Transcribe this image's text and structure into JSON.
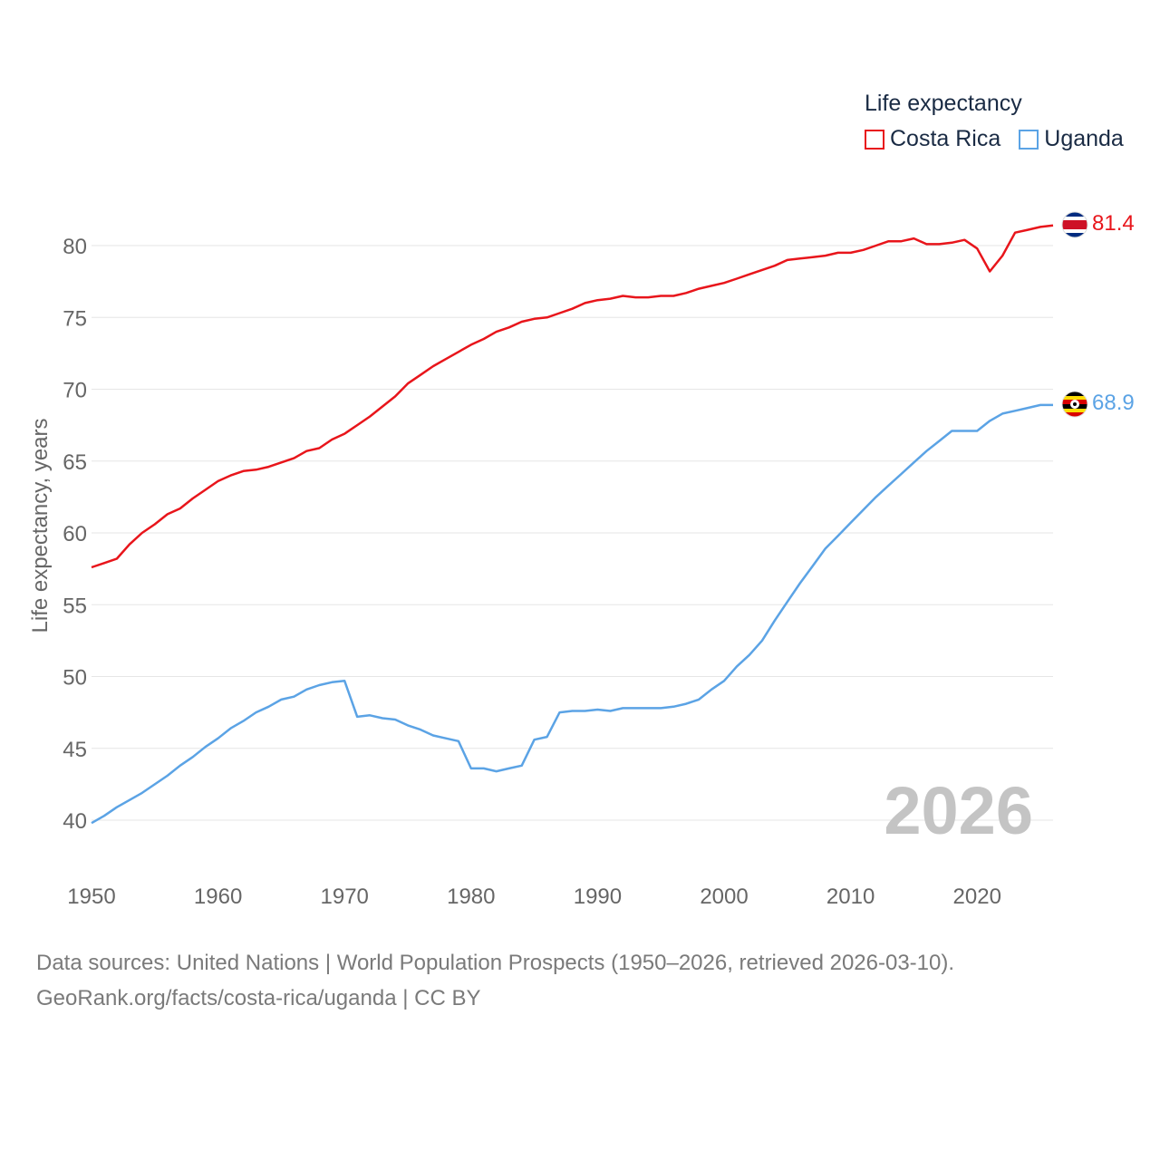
{
  "chart_data": {
    "type": "line",
    "title": "Life expectancy",
    "xlabel": "",
    "ylabel": "Life expectancy, years",
    "xlim": [
      1950,
      2026
    ],
    "ylim": [
      40,
      82
    ],
    "x_ticks": [
      1950,
      1960,
      1970,
      1980,
      1990,
      2000,
      2010,
      2020
    ],
    "y_ticks": [
      40,
      45,
      50,
      55,
      60,
      65,
      70,
      75,
      80
    ],
    "grid": true,
    "legend_position": "top-right",
    "year_label": "2026",
    "x": [
      1950,
      1951,
      1952,
      1953,
      1954,
      1955,
      1956,
      1957,
      1958,
      1959,
      1960,
      1961,
      1962,
      1963,
      1964,
      1965,
      1966,
      1967,
      1968,
      1969,
      1970,
      1971,
      1972,
      1973,
      1974,
      1975,
      1976,
      1977,
      1978,
      1979,
      1980,
      1981,
      1982,
      1983,
      1984,
      1985,
      1986,
      1987,
      1988,
      1989,
      1990,
      1991,
      1992,
      1993,
      1994,
      1995,
      1996,
      1997,
      1998,
      1999,
      2000,
      2001,
      2002,
      2003,
      2004,
      2005,
      2006,
      2007,
      2008,
      2009,
      2010,
      2011,
      2012,
      2013,
      2014,
      2015,
      2016,
      2017,
      2018,
      2019,
      2020,
      2021,
      2022,
      2023,
      2024,
      2025,
      2026
    ],
    "series": [
      {
        "name": "Costa Rica",
        "color": "#e8151b",
        "end_label": "81.4",
        "values": [
          57.6,
          57.9,
          58.2,
          59.2,
          60.0,
          60.6,
          61.3,
          61.7,
          62.4,
          63.0,
          63.6,
          64.0,
          64.3,
          64.4,
          64.6,
          64.9,
          65.2,
          65.7,
          65.9,
          66.5,
          66.9,
          67.5,
          68.1,
          68.8,
          69.5,
          70.4,
          71.0,
          71.6,
          72.1,
          72.6,
          73.1,
          73.5,
          74.0,
          74.3,
          74.7,
          74.9,
          75.0,
          75.3,
          75.6,
          76.0,
          76.2,
          76.3,
          76.5,
          76.4,
          76.4,
          76.5,
          76.5,
          76.7,
          77.0,
          77.2,
          77.4,
          77.7,
          78.0,
          78.3,
          78.6,
          79.0,
          79.1,
          79.2,
          79.3,
          79.5,
          79.5,
          79.7,
          80.0,
          80.3,
          80.3,
          80.5,
          80.1,
          80.1,
          80.2,
          80.4,
          79.8,
          78.2,
          79.3,
          80.9,
          81.1,
          81.3,
          81.4
        ]
      },
      {
        "name": "Uganda",
        "color": "#5ba3e5",
        "end_label": "68.9",
        "values": [
          39.8,
          40.3,
          40.9,
          41.4,
          41.9,
          42.5,
          43.1,
          43.8,
          44.4,
          45.1,
          45.7,
          46.4,
          46.9,
          47.5,
          47.9,
          48.4,
          48.6,
          49.1,
          49.4,
          49.6,
          49.7,
          47.2,
          47.3,
          47.1,
          47.0,
          46.6,
          46.3,
          45.9,
          45.7,
          45.5,
          43.6,
          43.6,
          43.4,
          43.6,
          43.8,
          45.6,
          45.8,
          47.5,
          47.6,
          47.6,
          47.7,
          47.6,
          47.8,
          47.8,
          47.8,
          47.8,
          47.9,
          48.1,
          48.4,
          49.1,
          49.7,
          50.7,
          51.5,
          52.5,
          53.9,
          55.2,
          56.5,
          57.7,
          58.9,
          59.8,
          60.7,
          61.6,
          62.5,
          63.3,
          64.1,
          64.9,
          65.7,
          66.4,
          67.1,
          67.1,
          67.1,
          67.8,
          68.3,
          68.5,
          68.7,
          68.9,
          68.9
        ]
      }
    ]
  },
  "source": {
    "line1": "Data sources: United Nations | World Population Prospects (1950–2026, retrieved 2026-03-10).",
    "line2": "GeoRank.org/facts/costa-rica/uganda | CC BY"
  }
}
